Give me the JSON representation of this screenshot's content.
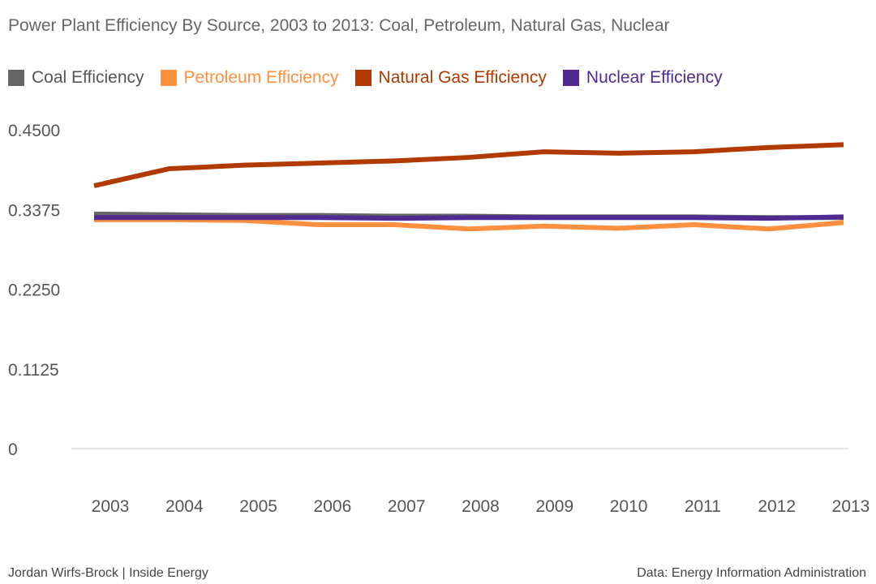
{
  "chart_data": {
    "type": "line",
    "title": "Power Plant Efficiency By Source, 2003 to 2013: Coal, Petroleum, Natural Gas, Nuclear",
    "x": [
      "2003",
      "2004",
      "2005",
      "2006",
      "2007",
      "2008",
      "2009",
      "2010",
      "2011",
      "2012",
      "2013"
    ],
    "ylim": [
      0,
      0.45
    ],
    "yticks": [
      "0",
      "0.1125",
      "0.2250",
      "0.3375",
      "0.4500"
    ],
    "legend_position": "top-left",
    "grid": false,
    "series": [
      {
        "name": "Coal Efficiency",
        "color": "#666666",
        "values": [
          0.331,
          0.33,
          0.329,
          0.329,
          0.328,
          0.328,
          0.327,
          0.327,
          0.327,
          0.326,
          0.326
        ]
      },
      {
        "name": "Petroleum Efficiency",
        "color": "#ff9040",
        "values": [
          0.323,
          0.323,
          0.322,
          0.316,
          0.316,
          0.31,
          0.314,
          0.311,
          0.316,
          0.31,
          0.319
        ]
      },
      {
        "name": "Natural Gas Efficiency",
        "color": "#b03a00",
        "values": [
          0.371,
          0.395,
          0.4,
          0.403,
          0.406,
          0.411,
          0.419,
          0.417,
          0.419,
          0.425,
          0.429
        ]
      },
      {
        "name": "Nuclear Efficiency",
        "color": "#512a8f",
        "values": [
          0.326,
          0.326,
          0.326,
          0.326,
          0.325,
          0.326,
          0.326,
          0.326,
          0.326,
          0.325,
          0.327
        ]
      }
    ]
  },
  "footer": {
    "credit": "Jordan Wirfs-Brock | Inside Energy",
    "source": "Data: Energy Information Administration"
  }
}
